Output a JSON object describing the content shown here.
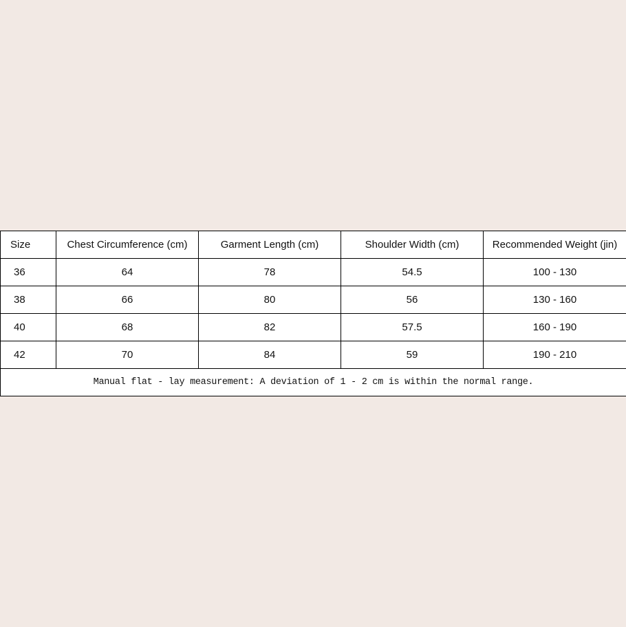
{
  "headers": [
    "Size",
    "Chest Circumference (cm)",
    "Garment Length (cm)",
    "Shoulder Width (cm)",
    "Recommended Weight (jin)"
  ],
  "rows": [
    [
      "36",
      "64",
      "78",
      "54.5",
      "100 - 130"
    ],
    [
      "38",
      "66",
      "80",
      "56",
      "130 - 160"
    ],
    [
      "40",
      "68",
      "82",
      "57.5",
      "160 - 190"
    ],
    [
      "42",
      "70",
      "84",
      "59",
      "190 - 210"
    ]
  ],
  "note": "Manual flat - lay measurement: A deviation of 1 - 2 cm is within the normal range.",
  "colors": {
    "background": "#f2e9e4",
    "table": "#ffffff",
    "border": "#000000"
  }
}
